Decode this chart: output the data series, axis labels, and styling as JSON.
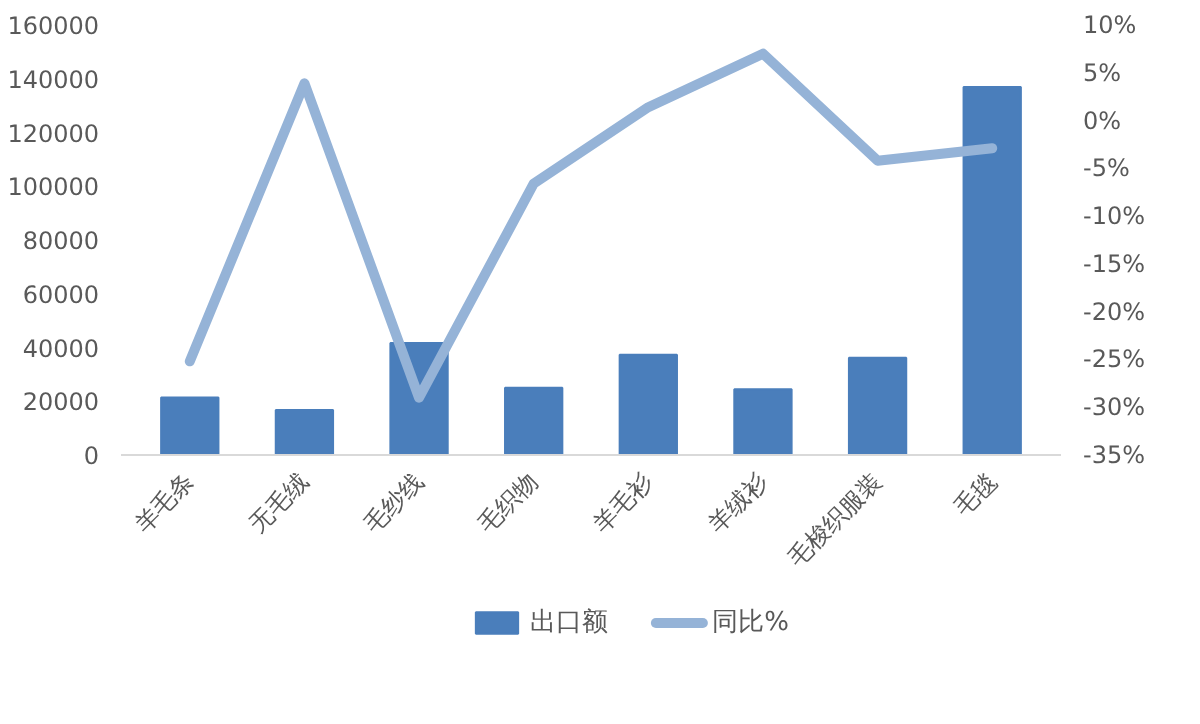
{
  "chart_data": {
    "type": "bar",
    "categories": [
      "羊毛条",
      "无毛绒",
      "毛纱线",
      "毛织物",
      "羊毛衫",
      "羊绒衫",
      "毛梭织服装",
      "毛毯"
    ],
    "series": [
      {
        "name": "出口额",
        "type": "bar",
        "color": "#4a7ebb",
        "values": [
          21400,
          16700,
          41700,
          25000,
          37300,
          24500,
          36200,
          136900
        ]
      },
      {
        "name": "同比%",
        "type": "line",
        "axis": "y2",
        "color": "#95b3d7",
        "values": [
          -25.2,
          3.9,
          -29,
          -6.6,
          1.4,
          7,
          -4.2,
          -2.9
        ]
      }
    ],
    "ylim": [
      0,
      160000
    ],
    "yticks": [
      0,
      20000,
      40000,
      60000,
      80000,
      100000,
      120000,
      140000,
      160000
    ],
    "y2lim": [
      -35,
      10
    ],
    "y2ticks": [
      {
        "value": -35,
        "label": "-35%"
      },
      {
        "value": -30,
        "label": "-30%"
      },
      {
        "value": -25,
        "label": "-25%"
      },
      {
        "value": -20,
        "label": "-20%"
      },
      {
        "value": -15,
        "label": "-15%"
      },
      {
        "value": -10,
        "label": "-10%"
      },
      {
        "value": -5,
        "label": "-5%"
      },
      {
        "value": 0,
        "label": "0%"
      },
      {
        "value": 5,
        "label": "5%"
      },
      {
        "value": 10,
        "label": "10%"
      }
    ],
    "grid": false,
    "legend": "bottom",
    "marker": "none",
    "line_style": "solid"
  }
}
